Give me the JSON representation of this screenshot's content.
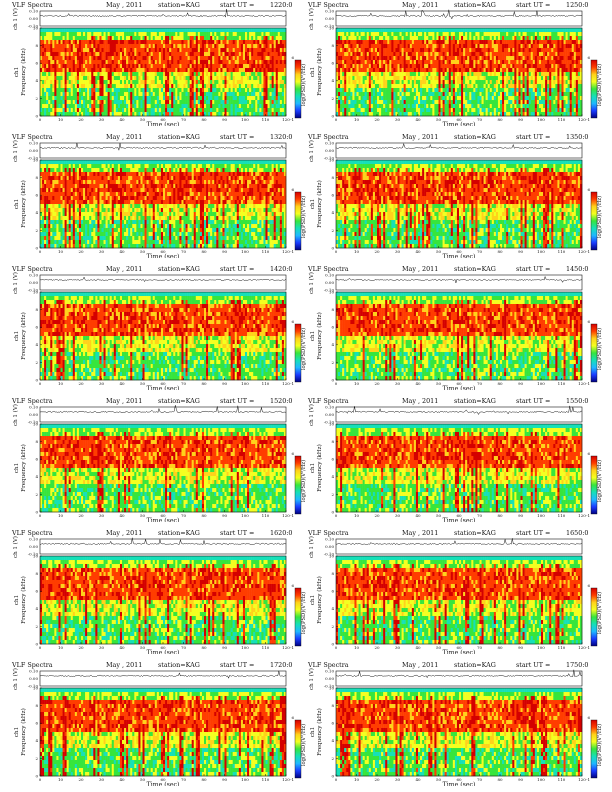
{
  "page": {
    "title_prefix": "VLF Spectra",
    "month": "May",
    "year": "2011",
    "date_sep": ",",
    "station_label": "station=KAG",
    "start_label": "start  UT  ="
  },
  "axis_text": {
    "ch_label": "ch 1 (V)",
    "ylabel_ch": "ch1",
    "ylabel_freq": "Frequency  (kHz)",
    "xlabel": "Time  (sec)",
    "cbar_label": "log(PSD)(V²/Hz)",
    "cbar_top": "6",
    "cbar_bottom": "-1",
    "small_y_ticks": [
      "0.10",
      "0.00",
      "-0.10"
    ]
  },
  "chart_data": [
    {
      "type": "heatmap",
      "start_ut": "1220:0",
      "freq_ylim": [
        0,
        10
      ],
      "time_xlim": [
        0,
        120
      ],
      "x_ticks": [
        0,
        10,
        20,
        30,
        40,
        50,
        60,
        70,
        80,
        90,
        100,
        110,
        120
      ],
      "y_ticks": [
        0,
        2,
        4,
        6,
        8,
        10
      ],
      "waveform_ylim": [
        -0.1,
        0.1
      ]
    },
    {
      "type": "heatmap",
      "start_ut": "1250:0",
      "freq_ylim": [
        0,
        10
      ],
      "time_xlim": [
        0,
        120
      ],
      "x_ticks": [
        0,
        10,
        20,
        30,
        40,
        50,
        60,
        70,
        80,
        90,
        100,
        110,
        120
      ],
      "y_ticks": [
        0,
        2,
        4,
        6,
        8,
        10
      ],
      "waveform_ylim": [
        -0.1,
        0.1
      ]
    },
    {
      "type": "heatmap",
      "start_ut": "1320:0",
      "freq_ylim": [
        0,
        10
      ],
      "time_xlim": [
        0,
        120
      ],
      "x_ticks": [
        0,
        10,
        20,
        30,
        40,
        50,
        60,
        70,
        80,
        90,
        100,
        110,
        120
      ],
      "y_ticks": [
        0,
        2,
        4,
        6,
        8,
        10
      ],
      "waveform_ylim": [
        -0.1,
        0.1
      ]
    },
    {
      "type": "heatmap",
      "start_ut": "1350:0",
      "freq_ylim": [
        0,
        10
      ],
      "time_xlim": [
        0,
        120
      ],
      "x_ticks": [
        0,
        10,
        20,
        30,
        40,
        50,
        60,
        70,
        80,
        90,
        100,
        110,
        120
      ],
      "y_ticks": [
        0,
        2,
        4,
        6,
        8,
        10
      ],
      "waveform_ylim": [
        -0.1,
        0.1
      ]
    },
    {
      "type": "heatmap",
      "start_ut": "1420:0",
      "freq_ylim": [
        0,
        10
      ],
      "time_xlim": [
        0,
        120
      ],
      "x_ticks": [
        0,
        10,
        20,
        30,
        40,
        50,
        60,
        70,
        80,
        90,
        100,
        110,
        120
      ],
      "y_ticks": [
        0,
        2,
        4,
        6,
        8,
        10
      ],
      "waveform_ylim": [
        -0.1,
        0.1
      ]
    },
    {
      "type": "heatmap",
      "start_ut": "1450:0",
      "freq_ylim": [
        0,
        10
      ],
      "time_xlim": [
        0,
        120
      ],
      "x_ticks": [
        0,
        10,
        20,
        30,
        40,
        50,
        60,
        70,
        80,
        90,
        100,
        110,
        120
      ],
      "y_ticks": [
        0,
        2,
        4,
        6,
        8,
        10
      ],
      "waveform_ylim": [
        -0.1,
        0.1
      ]
    },
    {
      "type": "heatmap",
      "start_ut": "1520:0",
      "freq_ylim": [
        0,
        10
      ],
      "time_xlim": [
        0,
        120
      ],
      "x_ticks": [
        0,
        10,
        20,
        30,
        40,
        50,
        60,
        70,
        80,
        90,
        100,
        110,
        120
      ],
      "y_ticks": [
        0,
        2,
        4,
        6,
        8,
        10
      ],
      "waveform_ylim": [
        -0.1,
        0.1
      ]
    },
    {
      "type": "heatmap",
      "start_ut": "1550:0",
      "freq_ylim": [
        0,
        10
      ],
      "time_xlim": [
        0,
        120
      ],
      "x_ticks": [
        0,
        10,
        20,
        30,
        40,
        50,
        60,
        70,
        80,
        90,
        100,
        110,
        120
      ],
      "y_ticks": [
        0,
        2,
        4,
        6,
        8,
        10
      ],
      "waveform_ylim": [
        -0.1,
        0.1
      ]
    },
    {
      "type": "heatmap",
      "start_ut": "1620:0",
      "freq_ylim": [
        0,
        10
      ],
      "time_xlim": [
        0,
        120
      ],
      "x_ticks": [
        0,
        10,
        20,
        30,
        40,
        50,
        60,
        70,
        80,
        90,
        100,
        110,
        120
      ],
      "y_ticks": [
        0,
        2,
        4,
        6,
        8,
        10
      ],
      "waveform_ylim": [
        -0.1,
        0.1
      ]
    },
    {
      "type": "heatmap",
      "start_ut": "1650:0",
      "freq_ylim": [
        0,
        10
      ],
      "time_xlim": [
        0,
        120
      ],
      "x_ticks": [
        0,
        10,
        20,
        30,
        40,
        50,
        60,
        70,
        80,
        90,
        100,
        110,
        120
      ],
      "y_ticks": [
        0,
        2,
        4,
        6,
        8,
        10
      ],
      "waveform_ylim": [
        -0.1,
        0.1
      ]
    },
    {
      "type": "heatmap",
      "start_ut": "1720:0",
      "freq_ylim": [
        0,
        10
      ],
      "time_xlim": [
        0,
        120
      ],
      "x_ticks": [
        0,
        10,
        20,
        30,
        40,
        50,
        60,
        70,
        80,
        90,
        100,
        110,
        120
      ],
      "y_ticks": [
        0,
        2,
        4,
        6,
        8,
        10
      ],
      "waveform_ylim": [
        -0.1,
        0.1
      ]
    },
    {
      "type": "heatmap",
      "start_ut": "1750:0",
      "freq_ylim": [
        0,
        10
      ],
      "time_xlim": [
        0,
        120
      ],
      "x_ticks": [
        0,
        10,
        20,
        30,
        40,
        50,
        60,
        70,
        80,
        90,
        100,
        110,
        120
      ],
      "y_ticks": [
        0,
        2,
        4,
        6,
        8,
        10
      ],
      "waveform_ylim": [
        -0.1,
        0.1
      ]
    }
  ],
  "colors": {
    "cbar_stops": [
      "#d40000",
      "#ff3d00",
      "#ffd21a",
      "#f4ff20",
      "#37e53d",
      "#16e0b8",
      "#20b8ff",
      "#1a3cff",
      "#000080"
    ],
    "waveform": "#111111",
    "axis": "#111111"
  }
}
